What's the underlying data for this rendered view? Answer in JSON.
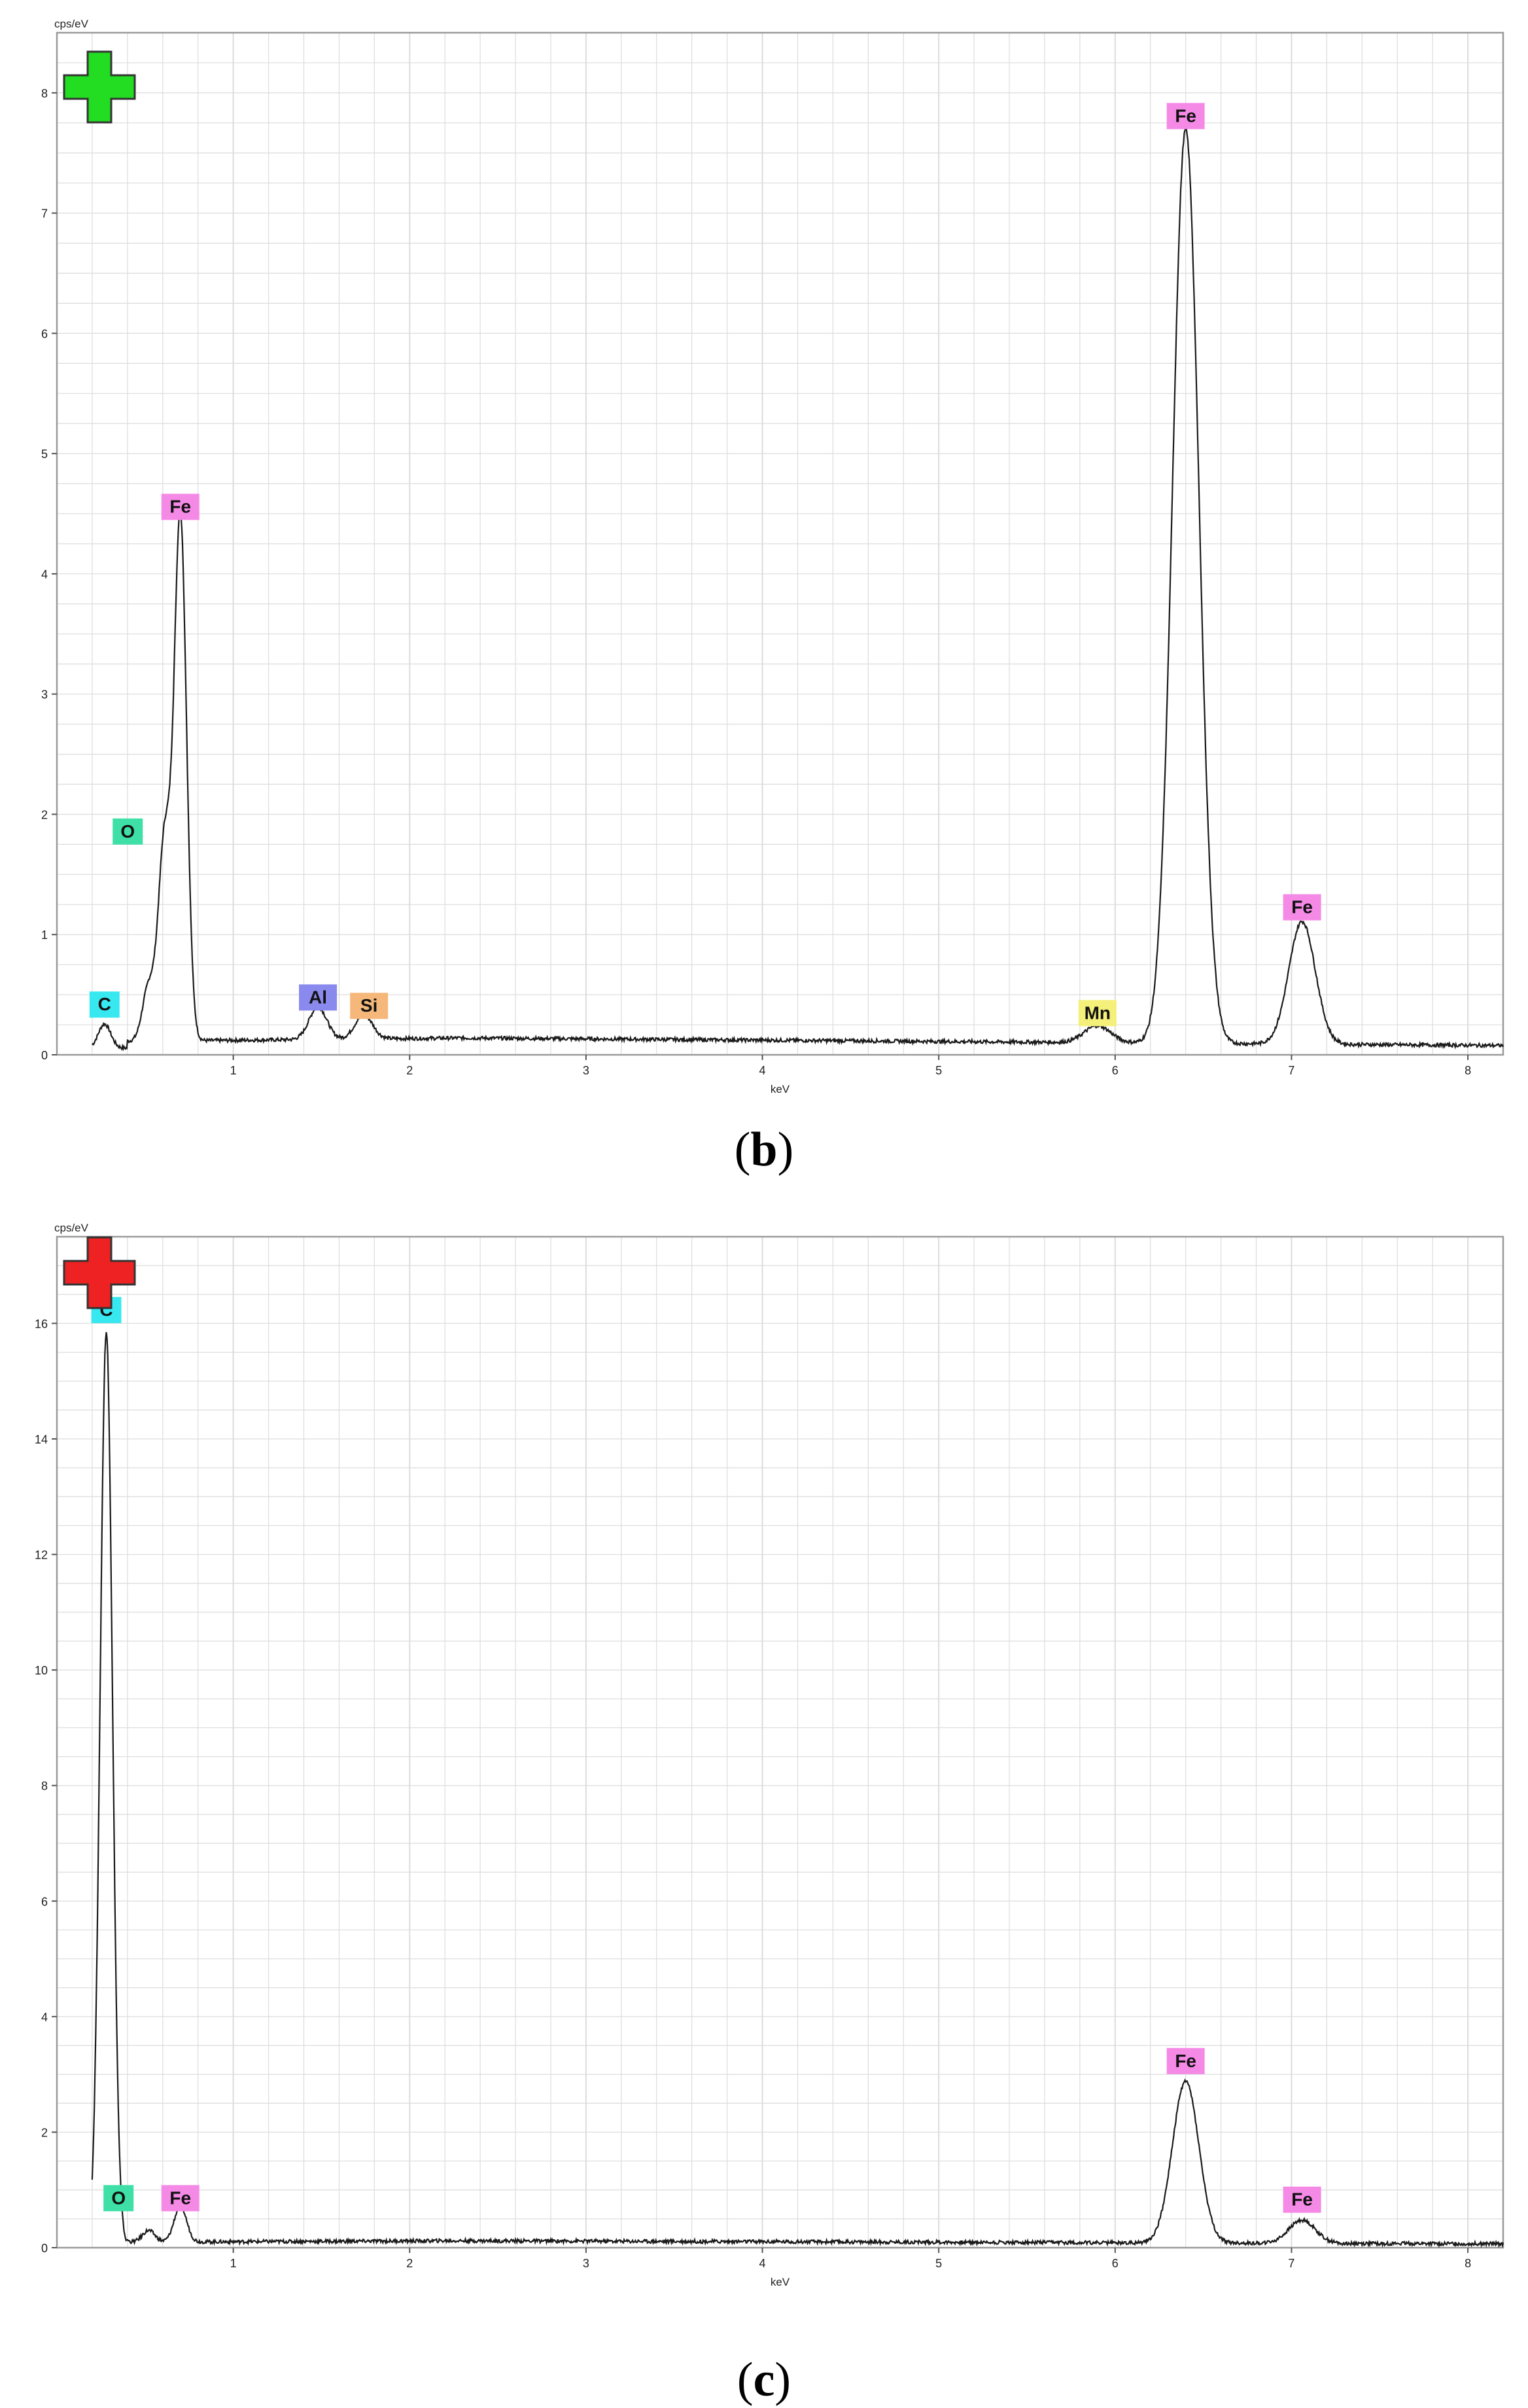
{
  "colors": {
    "plus_green": "#22dd22",
    "plus_red": "#ee2222",
    "Fe": "#f58ae6",
    "O": "#3ee0a8",
    "C": "#38e8f0",
    "Al": "#8a8aee",
    "Si": "#f6b87a",
    "Mn": "#f4f07a",
    "grid": "#dcdcdc",
    "frame": "#9a9a9a",
    "trace": "#1a1a1a"
  },
  "chart_data": [
    {
      "id": "b",
      "type": "line",
      "caption_letter": "b",
      "ylabel": "cps/eV",
      "xlabel": "keV",
      "xlim": [
        0.0,
        8.2
      ],
      "ylim": [
        0,
        8.5
      ],
      "xticks": [
        1,
        2,
        3,
        4,
        5,
        6,
        7,
        8
      ],
      "yticks": [
        0,
        1,
        2,
        3,
        4,
        5,
        6,
        7,
        8
      ],
      "grid": true,
      "marker_icon": "green-plus-icon",
      "background": 0.14,
      "peaks": [
        {
          "x": 0.27,
          "y": 0.2
        },
        {
          "x": 0.52,
          "y": 0.45
        },
        {
          "x": 0.61,
          "y": 1.65
        },
        {
          "x": 0.7,
          "y": 4.35
        },
        {
          "x": 1.48,
          "y": 0.27
        },
        {
          "x": 1.74,
          "y": 0.2
        },
        {
          "x": 5.9,
          "y": 0.14
        },
        {
          "x": 6.4,
          "y": 7.6
        },
        {
          "x": 7.06,
          "y": 1.02
        }
      ],
      "labels": [
        {
          "element": "C",
          "x": 0.27,
          "y": 0.2
        },
        {
          "element": "O",
          "x": 0.52,
          "y": 1.65
        },
        {
          "element": "Fe",
          "x": 0.7,
          "y": 4.35
        },
        {
          "element": "Al",
          "x": 1.48,
          "y": 0.27
        },
        {
          "element": "Si",
          "x": 1.74,
          "y": 0.2
        },
        {
          "element": "Mn",
          "x": 5.9,
          "y": 0.14
        },
        {
          "element": "Fe",
          "x": 6.4,
          "y": 7.6
        },
        {
          "element": "Fe",
          "x": 7.06,
          "y": 1.02
        }
      ]
    },
    {
      "id": "c",
      "type": "line",
      "caption_letter": "c",
      "ylabel": "cps/eV",
      "xlabel": "keV",
      "xlim": [
        0.0,
        8.2
      ],
      "ylim": [
        0,
        17.5
      ],
      "xticks": [
        1,
        2,
        3,
        4,
        5,
        6,
        7,
        8
      ],
      "yticks": [
        0,
        2,
        4,
        6,
        8,
        10,
        12,
        14,
        16
      ],
      "grid": true,
      "marker_icon": "red-plus-icon",
      "background": 0.12,
      "peaks": [
        {
          "x": 0.28,
          "y": 15.8
        },
        {
          "x": 0.52,
          "y": 0.2
        },
        {
          "x": 0.7,
          "y": 0.62
        },
        {
          "x": 6.4,
          "y": 2.8
        },
        {
          "x": 7.06,
          "y": 0.4
        }
      ],
      "labels": [
        {
          "element": "C",
          "x": 0.28,
          "y": 15.8
        },
        {
          "element": "O",
          "x": 0.52,
          "y": 0.2
        },
        {
          "element": "Fe",
          "x": 0.7,
          "y": 0.62
        },
        {
          "element": "Fe",
          "x": 6.4,
          "y": 2.8
        },
        {
          "element": "Fe",
          "x": 7.06,
          "y": 0.4
        }
      ]
    }
  ]
}
